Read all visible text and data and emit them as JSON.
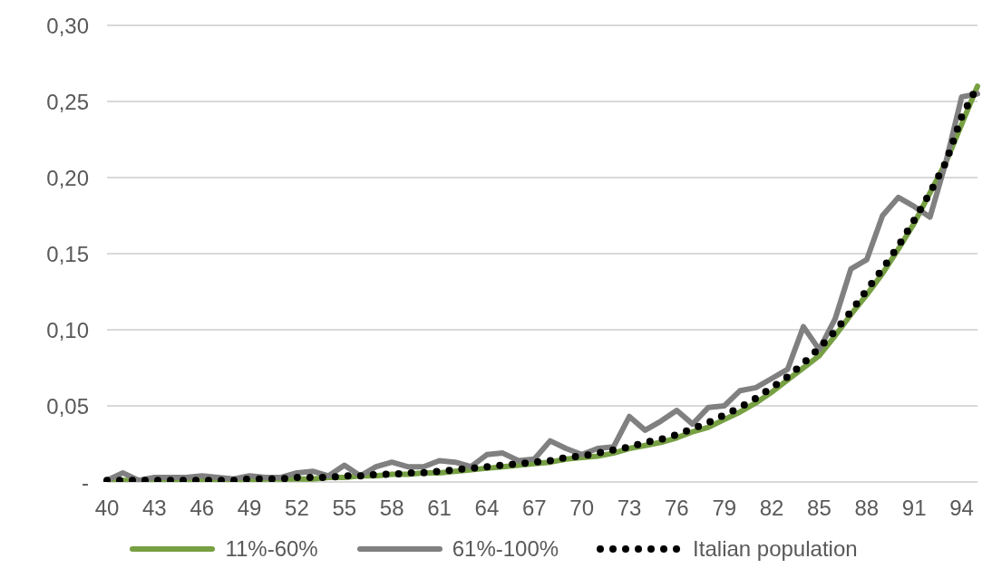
{
  "chart_data": {
    "type": "line",
    "categories": [
      "40",
      null,
      null,
      "43",
      null,
      null,
      "46",
      null,
      null,
      "49",
      null,
      null,
      "52",
      null,
      null,
      "55",
      null,
      null,
      "58",
      null,
      null,
      "61",
      null,
      null,
      "64",
      null,
      null,
      "67",
      null,
      null,
      "70",
      null,
      null,
      "73",
      null,
      null,
      "76",
      null,
      null,
      "79",
      null,
      null,
      "82",
      null,
      null,
      "85",
      null,
      null,
      "88",
      null,
      null,
      "91",
      null,
      null,
      "94",
      null
    ],
    "series": [
      {
        "name": "11%-60%",
        "color": "#77a043",
        "line_style": "solid",
        "values": [
          0.001,
          0.001,
          0.001,
          0.001,
          0.001,
          0.001,
          0.001,
          0.001,
          0.001,
          0.001,
          0.002,
          0.002,
          0.002,
          0.002,
          0.003,
          0.003,
          0.004,
          0.004,
          0.005,
          0.005,
          0.006,
          0.006,
          0.007,
          0.008,
          0.009,
          0.01,
          0.011,
          0.012,
          0.013,
          0.015,
          0.016,
          0.017,
          0.019,
          0.022,
          0.024,
          0.026,
          0.029,
          0.033,
          0.036,
          0.041,
          0.046,
          0.052,
          0.059,
          0.067,
          0.075,
          0.083,
          0.096,
          0.11,
          0.123,
          0.137,
          0.153,
          0.17,
          0.19,
          0.21,
          0.235,
          0.26
        ]
      },
      {
        "name": "61%-100%",
        "color": "#808080",
        "line_style": "solid",
        "values": [
          0.001,
          0.006,
          0.001,
          0.003,
          0.003,
          0.003,
          0.004,
          0.003,
          0.002,
          0.004,
          0.003,
          0.003,
          0.006,
          0.007,
          0.004,
          0.011,
          0.004,
          0.01,
          0.013,
          0.01,
          0.01,
          0.014,
          0.013,
          0.01,
          0.018,
          0.019,
          0.014,
          0.015,
          0.027,
          0.022,
          0.018,
          0.022,
          0.023,
          0.043,
          0.034,
          0.04,
          0.047,
          0.038,
          0.049,
          0.05,
          0.06,
          0.062,
          0.068,
          0.074,
          0.102,
          0.087,
          0.107,
          0.14,
          0.146,
          0.175,
          0.187,
          0.181,
          0.174,
          0.21,
          0.253,
          0.255
        ]
      },
      {
        "name": "Italian population",
        "color": "#000000",
        "line_style": "dotted",
        "values": [
          0.001,
          0.001,
          0.001,
          0.001,
          0.001,
          0.001,
          0.001,
          0.001,
          0.001,
          0.002,
          0.002,
          0.002,
          0.003,
          0.003,
          0.003,
          0.004,
          0.004,
          0.005,
          0.005,
          0.006,
          0.006,
          0.007,
          0.008,
          0.009,
          0.01,
          0.011,
          0.012,
          0.013,
          0.014,
          0.016,
          0.017,
          0.019,
          0.021,
          0.023,
          0.026,
          0.028,
          0.031,
          0.035,
          0.039,
          0.044,
          0.049,
          0.055,
          0.062,
          0.069,
          0.078,
          0.088,
          0.099,
          0.112,
          0.126,
          0.14,
          0.155,
          0.172,
          0.19,
          0.21,
          0.24,
          0.26
        ]
      }
    ],
    "ylim": [
      0,
      0.3
    ],
    "yticks": [
      {
        "value": 0,
        "label": "-"
      },
      {
        "value": 0.05,
        "label": "0,05"
      },
      {
        "value": 0.1,
        "label": "0,10"
      },
      {
        "value": 0.15,
        "label": "0,15"
      },
      {
        "value": 0.2,
        "label": "0,20"
      },
      {
        "value": 0.25,
        "label": "0,25"
      },
      {
        "value": 0.3,
        "label": "0,30"
      }
    ],
    "grid": "y",
    "legend": "bottom",
    "marker": "none"
  }
}
